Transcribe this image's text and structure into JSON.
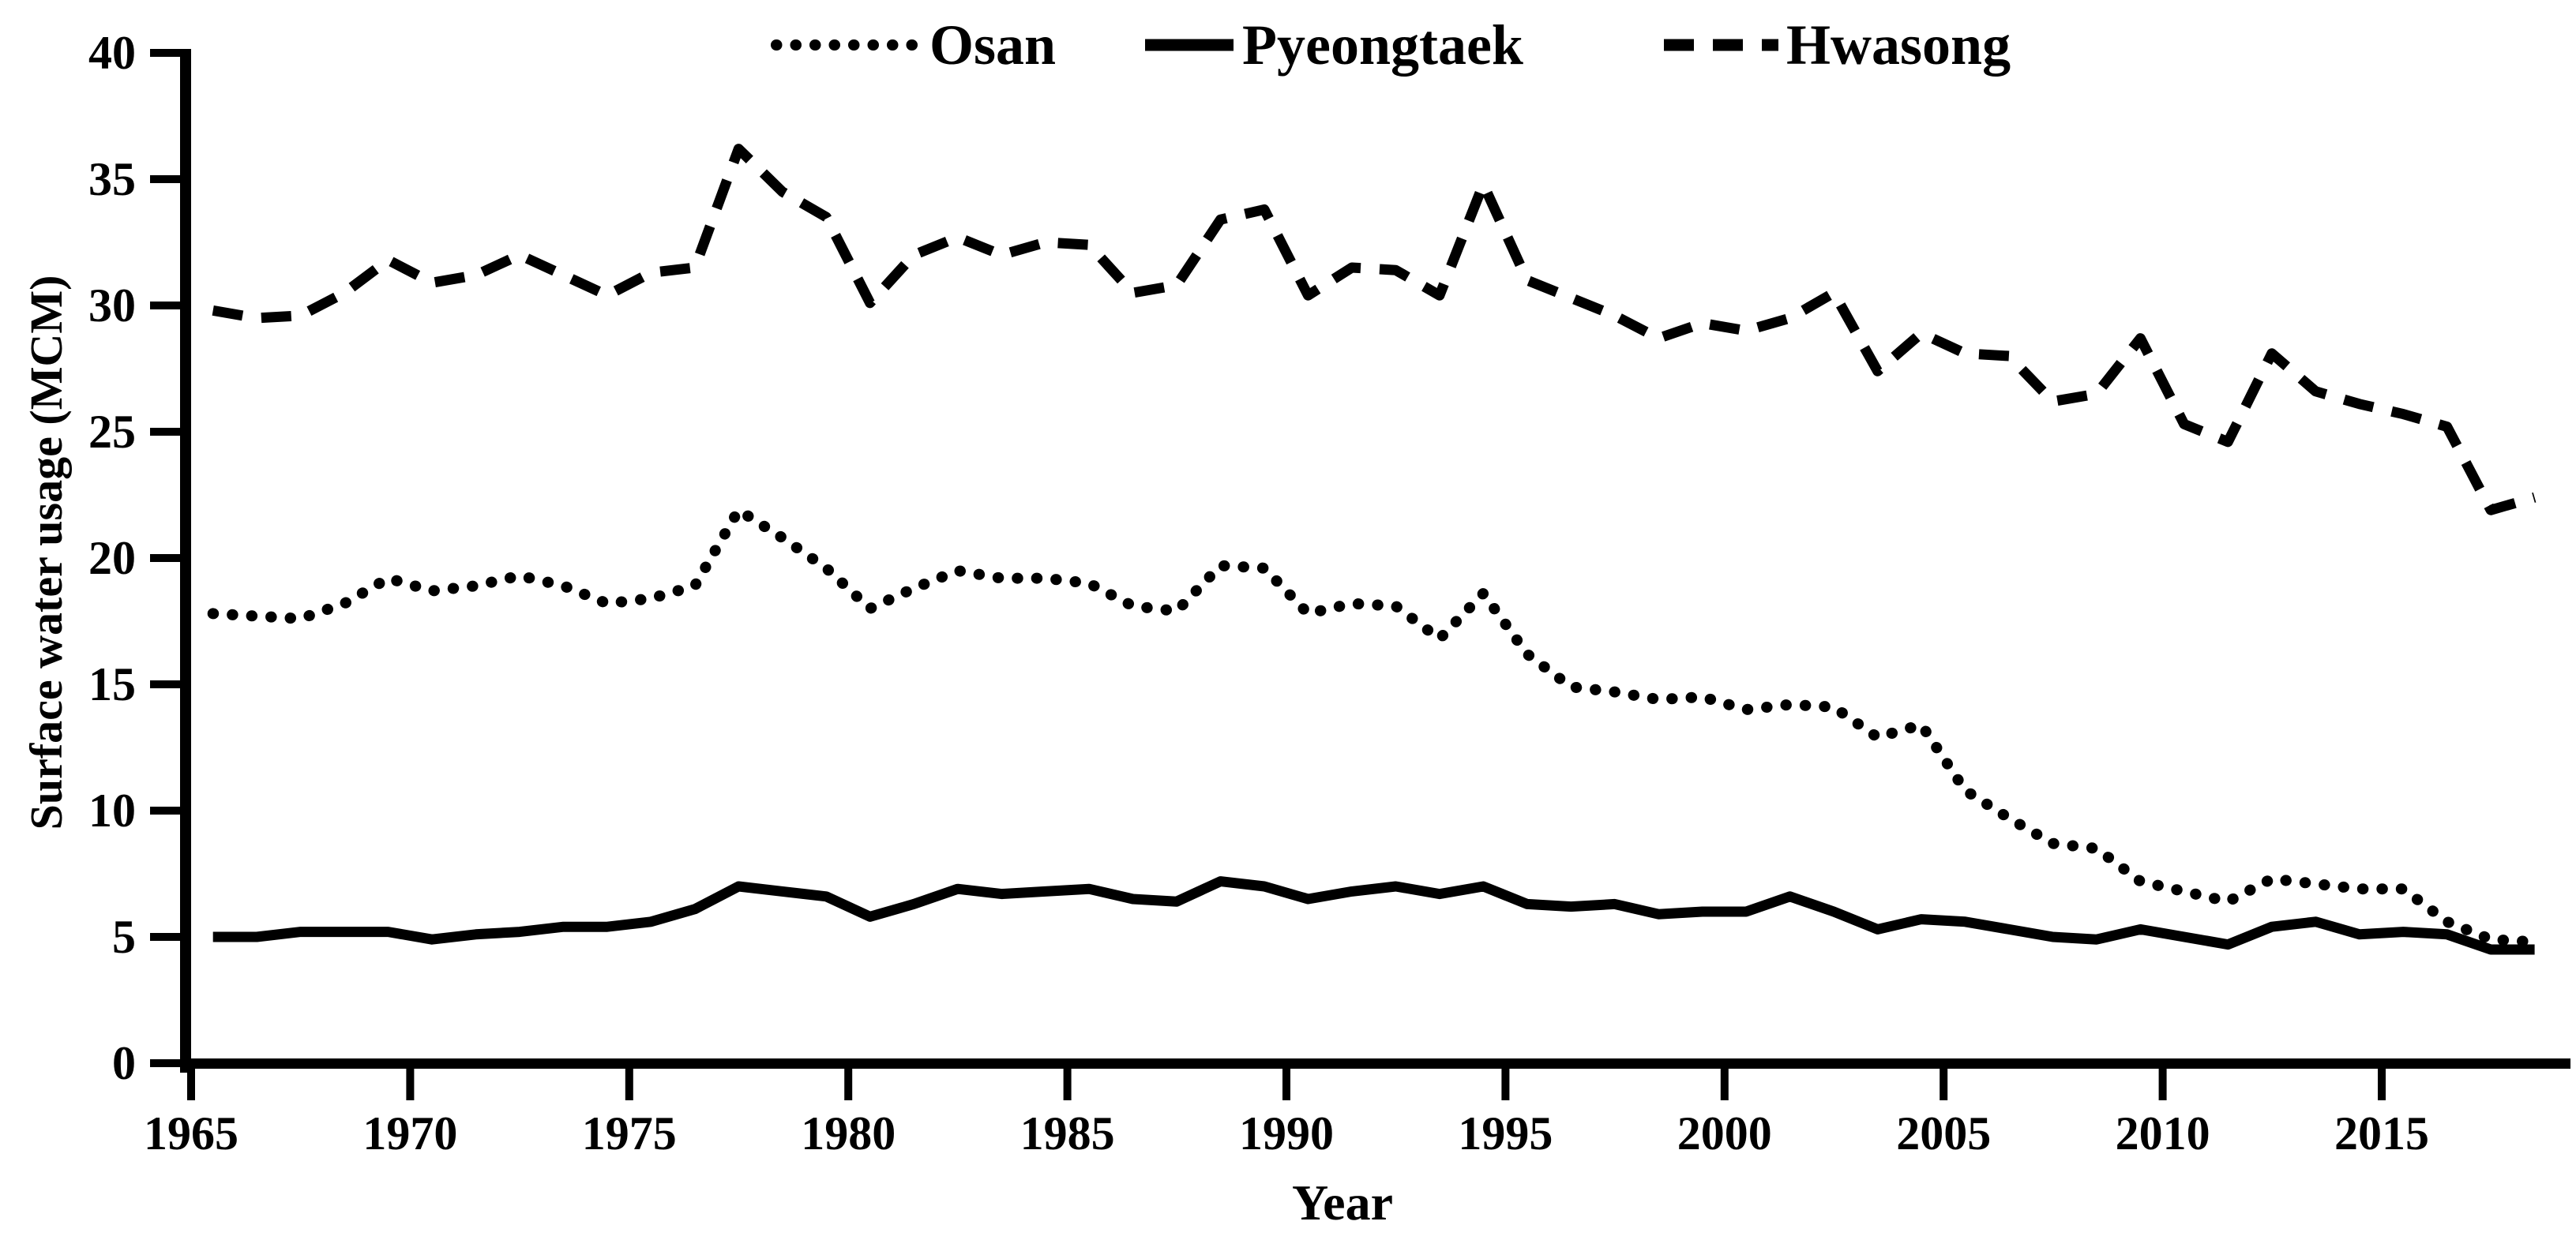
{
  "page": {
    "background_color": "#ffffff",
    "foreground_color": "#000000"
  },
  "chart_data": {
    "type": "line",
    "title": "",
    "xlabel": "Year",
    "ylabel": "Surface water usage (MCM)",
    "legend_position": "top-center",
    "grid": false,
    "xlim": [
      1965,
      2018
    ],
    "ylim": [
      0,
      40
    ],
    "y_ticks": [
      0,
      5,
      10,
      15,
      20,
      25,
      30,
      35,
      40
    ],
    "x_ticks": [
      1965,
      1970,
      1975,
      1980,
      1985,
      1990,
      1995,
      2000,
      2005,
      2010,
      2015
    ],
    "x": [
      1965,
      1966,
      1967,
      1968,
      1969,
      1970,
      1971,
      1972,
      1973,
      1974,
      1975,
      1976,
      1977,
      1978,
      1979,
      1980,
      1981,
      1982,
      1983,
      1984,
      1985,
      1986,
      1987,
      1988,
      1989,
      1990,
      1991,
      1992,
      1993,
      1994,
      1995,
      1996,
      1997,
      1998,
      1999,
      2000,
      2001,
      2002,
      2003,
      2004,
      2005,
      2006,
      2007,
      2008,
      2009,
      2010,
      2011,
      2012,
      2013,
      2014,
      2015,
      2016,
      2017,
      2018
    ],
    "series": [
      {
        "name": "Osan",
        "style": "dotted",
        "color": "#000000",
        "values": [
          17.8,
          17.7,
          17.6,
          18.2,
          19.2,
          18.7,
          18.9,
          19.3,
          18.9,
          18.2,
          18.4,
          18.9,
          21.9,
          20.8,
          19.6,
          18.0,
          18.8,
          19.5,
          19.2,
          19.2,
          19.0,
          18.1,
          17.9,
          19.7,
          19.6,
          17.8,
          18.2,
          18.1,
          16.8,
          18.6,
          16.2,
          14.9,
          14.7,
          14.4,
          14.5,
          14.0,
          14.2,
          14.1,
          12.9,
          13.4,
          10.8,
          9.7,
          8.7,
          8.5,
          7.2,
          6.8,
          6.4,
          7.3,
          7.1,
          6.9,
          6.9,
          5.6,
          4.9,
          4.8
        ]
      },
      {
        "name": "Pyeongtaek",
        "style": "solid",
        "color": "#000000",
        "values": [
          5.0,
          5.0,
          5.2,
          5.2,
          5.2,
          4.9,
          5.1,
          5.2,
          5.4,
          5.4,
          5.6,
          6.1,
          7.0,
          6.8,
          6.6,
          5.8,
          6.3,
          6.9,
          6.7,
          6.8,
          6.9,
          6.5,
          6.4,
          7.2,
          7.0,
          6.5,
          6.8,
          7.0,
          6.7,
          7.0,
          6.3,
          6.2,
          6.3,
          5.9,
          6.0,
          6.0,
          6.6,
          6.0,
          5.3,
          5.7,
          5.6,
          5.3,
          5.0,
          4.9,
          5.3,
          5.0,
          4.7,
          5.4,
          5.6,
          5.1,
          5.2,
          5.1,
          4.5,
          4.5
        ]
      },
      {
        "name": "Hwasong",
        "style": "dashed",
        "color": "#000000",
        "values": [
          29.8,
          29.5,
          29.6,
          30.5,
          31.8,
          30.9,
          31.2,
          32.0,
          31.2,
          30.4,
          31.3,
          31.5,
          36.2,
          34.5,
          33.5,
          30.1,
          32.0,
          32.7,
          32.0,
          32.5,
          32.4,
          30.5,
          30.8,
          33.4,
          33.8,
          30.4,
          31.5,
          31.4,
          30.4,
          34.8,
          31.0,
          30.3,
          29.6,
          28.7,
          29.3,
          29.0,
          29.5,
          30.5,
          27.4,
          28.9,
          28.1,
          28.0,
          26.2,
          26.5,
          28.7,
          25.3,
          24.6,
          28.1,
          26.6,
          26.1,
          25.7,
          25.2,
          21.9,
          22.4
        ]
      }
    ]
  }
}
